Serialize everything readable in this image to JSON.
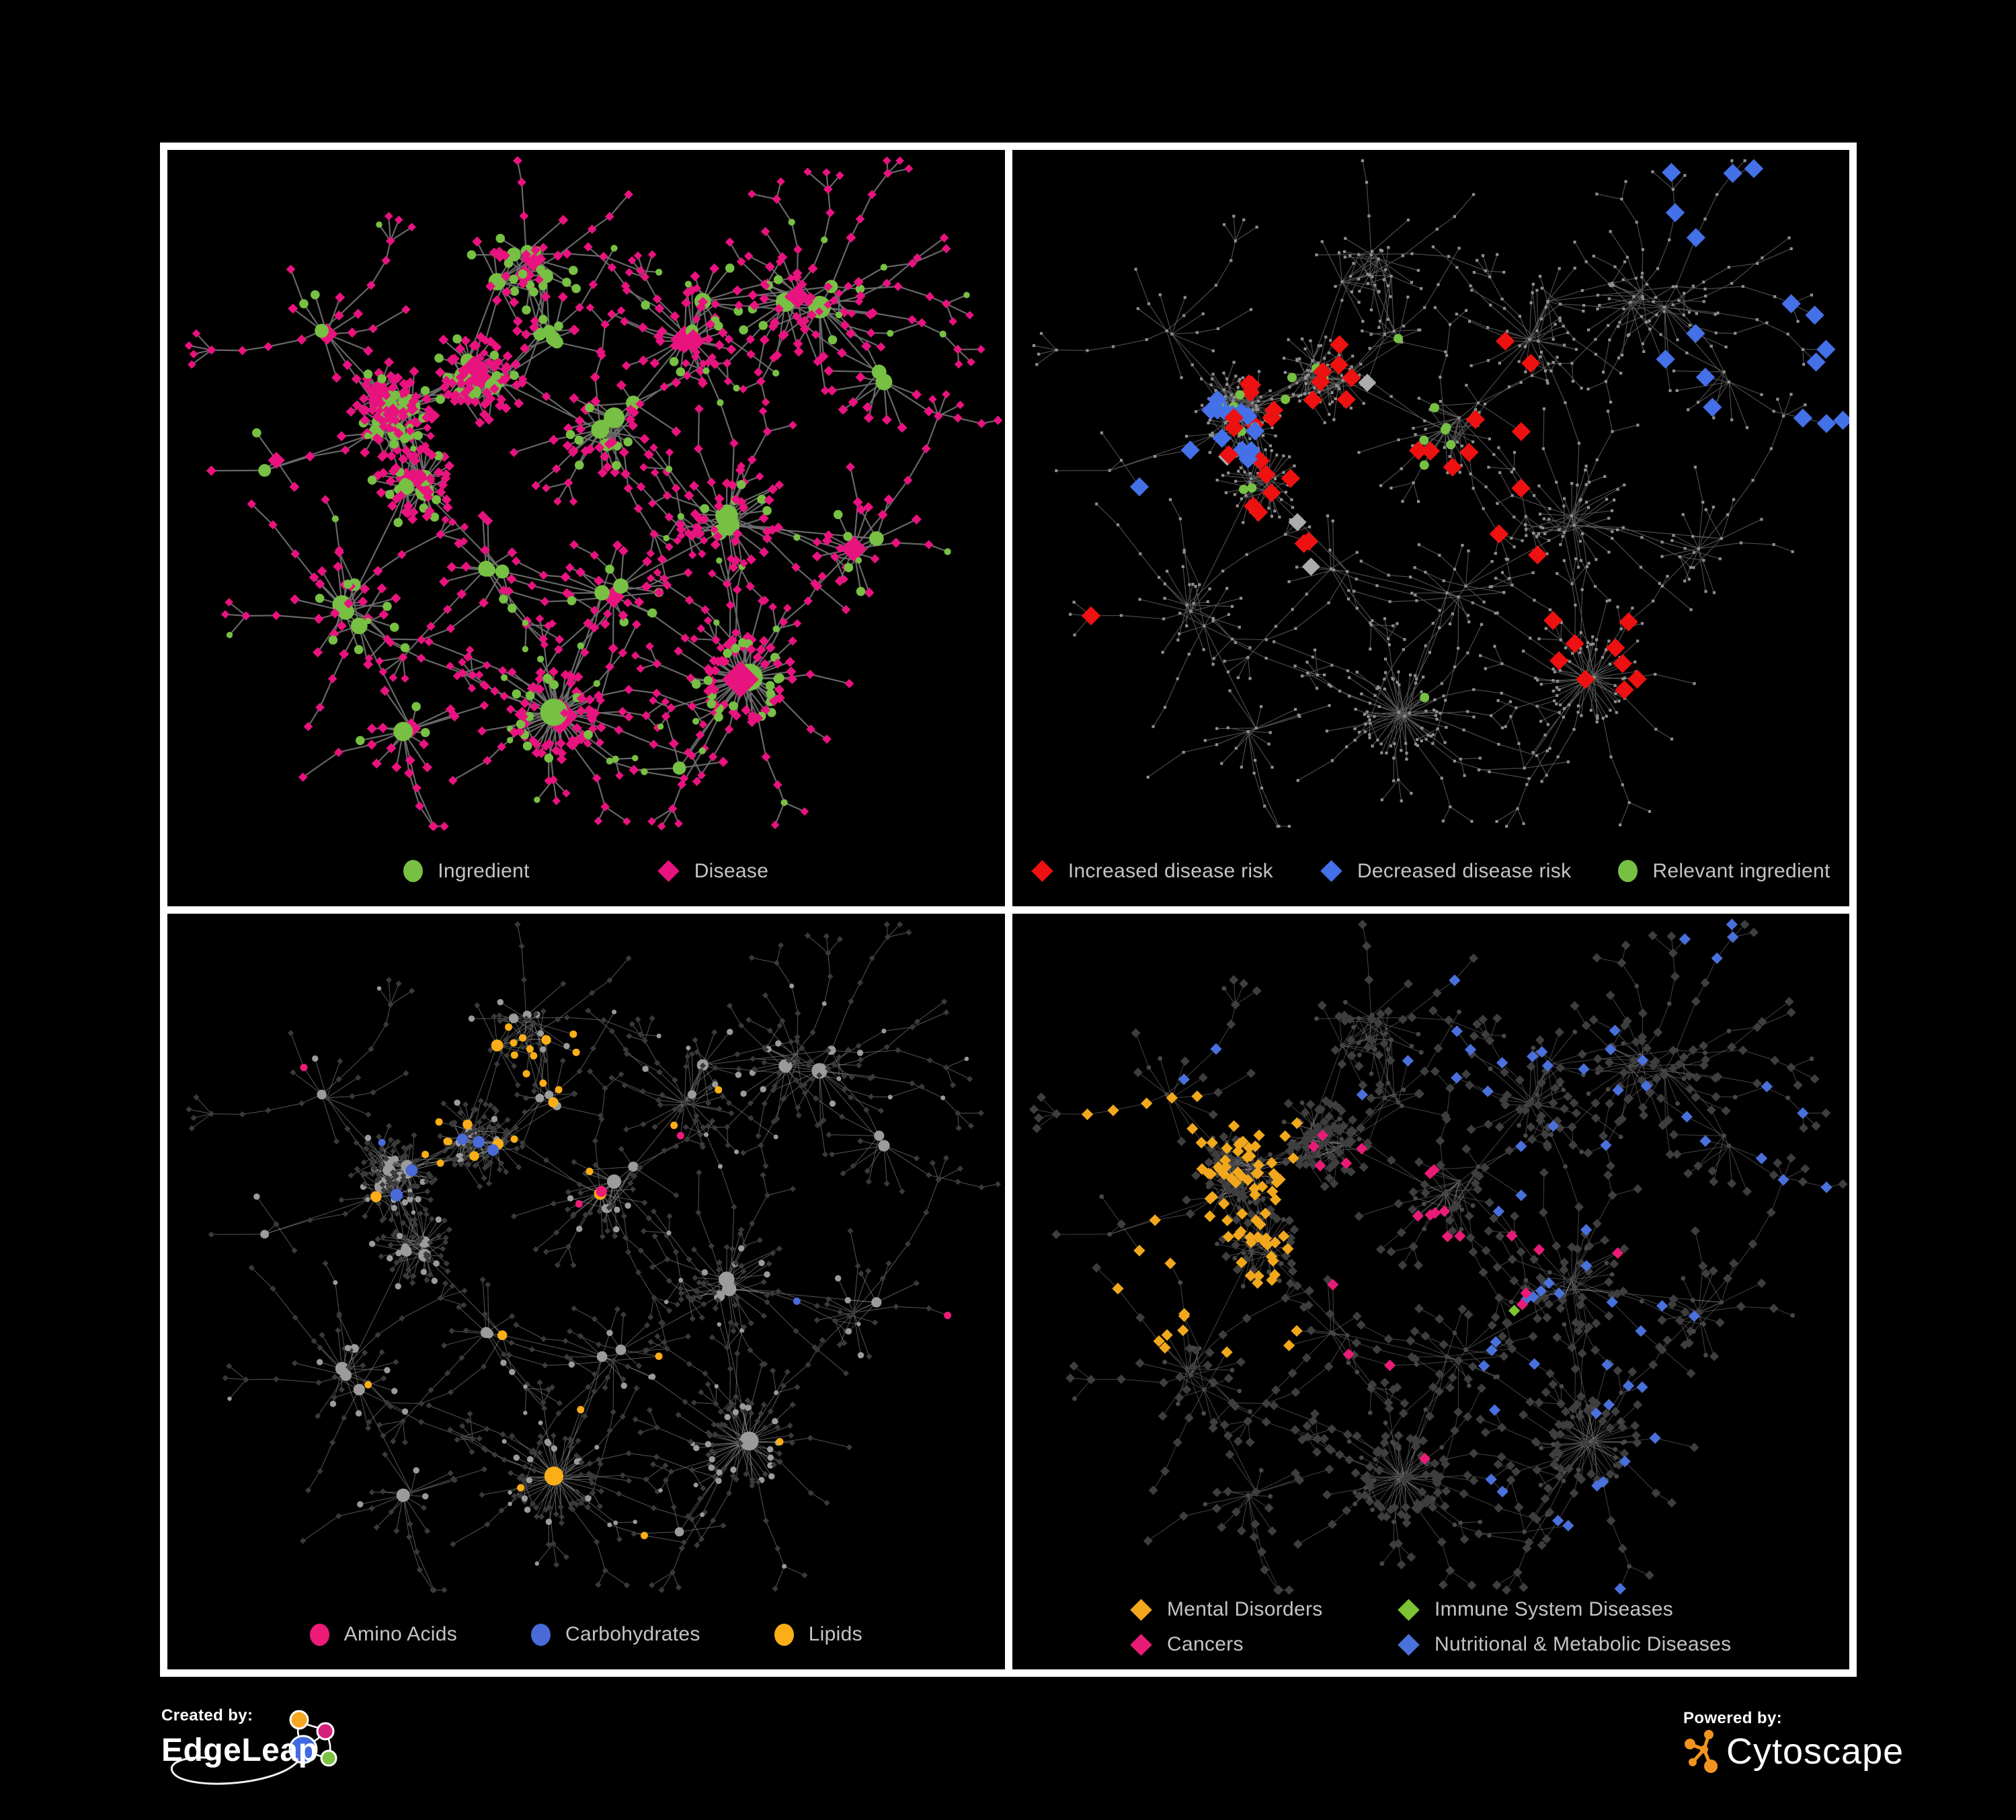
{
  "branding": {
    "created_by_label": "Created by:",
    "edgeleap_name": "EdgeLeap",
    "powered_by_label": "Powered by:",
    "cytoscape_name": "Cytoscape"
  },
  "colors": {
    "background": "#000000",
    "frame": "#FFFFFF",
    "legend_text": "#C4C4C4",
    "cytoscape_orange": "#F0941F",
    "edgeleap_orange": "#F5A623",
    "edgeleap_magenta": "#D6217A",
    "edgeleap_blue": "#4169E1",
    "edgeleap_green": "#7DC242"
  },
  "panels": [
    {
      "name": "Ingredient-Disease network",
      "mode": "plain",
      "edge": {
        "color": "#6D6D6D",
        "width": 2.2,
        "opacity": 0.95
      },
      "palette": {
        "circle": "#77C043",
        "diamond": "#E8137F"
      },
      "legend": [
        {
          "label": "Ingredient",
          "color": "#77C043",
          "shape": "circle"
        },
        {
          "label": "Disease",
          "color": "#E8137F",
          "shape": "diamond"
        }
      ]
    },
    {
      "name": "Disease risk associations",
      "mode": "risk",
      "edge": {
        "color": "#5A5A5A",
        "width": 1.1,
        "opacity": 0.9
      },
      "palette": {
        "base": "#8F8F8F",
        "increased": "#EE1111",
        "decreased": "#4470E8",
        "relevant": "#77C043",
        "other": "#ACACAC"
      },
      "legend": [
        {
          "label": "Increased disease risk",
          "color": "#EE1111",
          "shape": "diamond"
        },
        {
          "label": "Decreased disease risk",
          "color": "#4470E8",
          "shape": "diamond"
        },
        {
          "label": "Relevant ingredient",
          "color": "#77C043",
          "shape": "circle"
        }
      ]
    },
    {
      "name": "Nutrient classes",
      "mode": "nutrients",
      "edge": {
        "color": "#8F8F8F",
        "width": 1.0,
        "opacity": 0.6
      },
      "palette": {
        "ingredient": "#9B9B9B",
        "disease": "#3A3A3A",
        "amino_acids": "#EE1A78",
        "carbohydrates": "#4A6AD8",
        "lipids": "#FBAE17"
      },
      "legend": [
        {
          "label": "Amino Acids",
          "color": "#EE1A78",
          "shape": "circle"
        },
        {
          "label": "Carbohydrates",
          "color": "#4A6AD8",
          "shape": "circle"
        },
        {
          "label": "Lipids",
          "color": "#FBAE17",
          "shape": "circle"
        }
      ]
    },
    {
      "name": "Disease categories",
      "mode": "categories",
      "edge": {
        "color": "#949494",
        "width": 0.9,
        "opacity": 0.5
      },
      "palette": {
        "ingredient": "#474747",
        "disease": "#3E3E3E",
        "mental": "#F2A81D",
        "immune": "#7CC434",
        "cancers": "#E81C77",
        "nutritional": "#4A70DC"
      },
      "legend": [
        {
          "label": "Mental Disorders",
          "color": "#F2A81D",
          "shape": "diamond"
        },
        {
          "label": "Immune System Diseases",
          "color": "#7CC434",
          "shape": "diamond"
        },
        {
          "label": "Cancers",
          "color": "#E81C77",
          "shape": "diamond"
        },
        {
          "label": "Nutritional & Metabolic Diseases",
          "color": "#4A70DC",
          "shape": "diamond"
        }
      ]
    }
  ]
}
